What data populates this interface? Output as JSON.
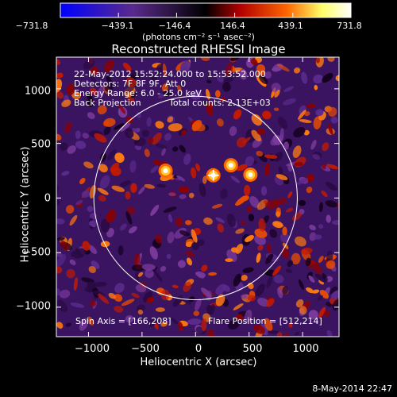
{
  "chart_data": {
    "type": "heatmap",
    "title": "Reconstructed RHESSI Image",
    "xlabel": "Heliocentric X (arcsec)",
    "ylabel": "Heliocentric Y (arcsec)",
    "xlim": [
      -1300,
      1340
    ],
    "ylim": [
      -1270,
      1290
    ],
    "x_ticks": [
      "−1000",
      "−500",
      "0",
      "500",
      "1000"
    ],
    "x_tick_values": [
      -1000,
      -500,
      0,
      500,
      1000
    ],
    "y_ticks": [
      "1000",
      "500",
      "0",
      "−500",
      "−1000"
    ],
    "y_tick_values": [
      1000,
      500,
      0,
      -500,
      -1000
    ],
    "colorbar": {
      "ticks": [
        "−731.8",
        "−439.1",
        "−146.4",
        "146.4",
        "439.1",
        "731.8"
      ],
      "min": -731.8,
      "max": 731.8,
      "units": "(photons cm⁻² s⁻¹ asec⁻²)",
      "colors": [
        "#0000ff",
        "#5a2a8c",
        "#000000",
        "#b40000",
        "#ff6600",
        "#ffff66",
        "#ffffff"
      ]
    },
    "solar_disk_radius": 950,
    "flare_position": [
      512,
      214
    ],
    "marker_position": [
      166,
      208
    ],
    "bright_sources": [
      [
        512,
        214
      ],
      [
        166,
        208
      ],
      [
        330,
        300
      ],
      [
        -280,
        250
      ]
    ],
    "annotations": {
      "time": "22-May-2012 15:52:24.000 to 15:53:52.000",
      "detectors": "Detectors: 7F 8F 9F, Att 0",
      "energy": "Energy Range: 6.0 - 25.0 keV",
      "method": "Back Projection",
      "counts": "Total counts: 2.13E+03",
      "spin_axis": "Spin Axis = [166,208]",
      "flare_pos": "Flare Position = [512,214]"
    }
  },
  "footer": {
    "date": "8-May-2014 22:47"
  }
}
